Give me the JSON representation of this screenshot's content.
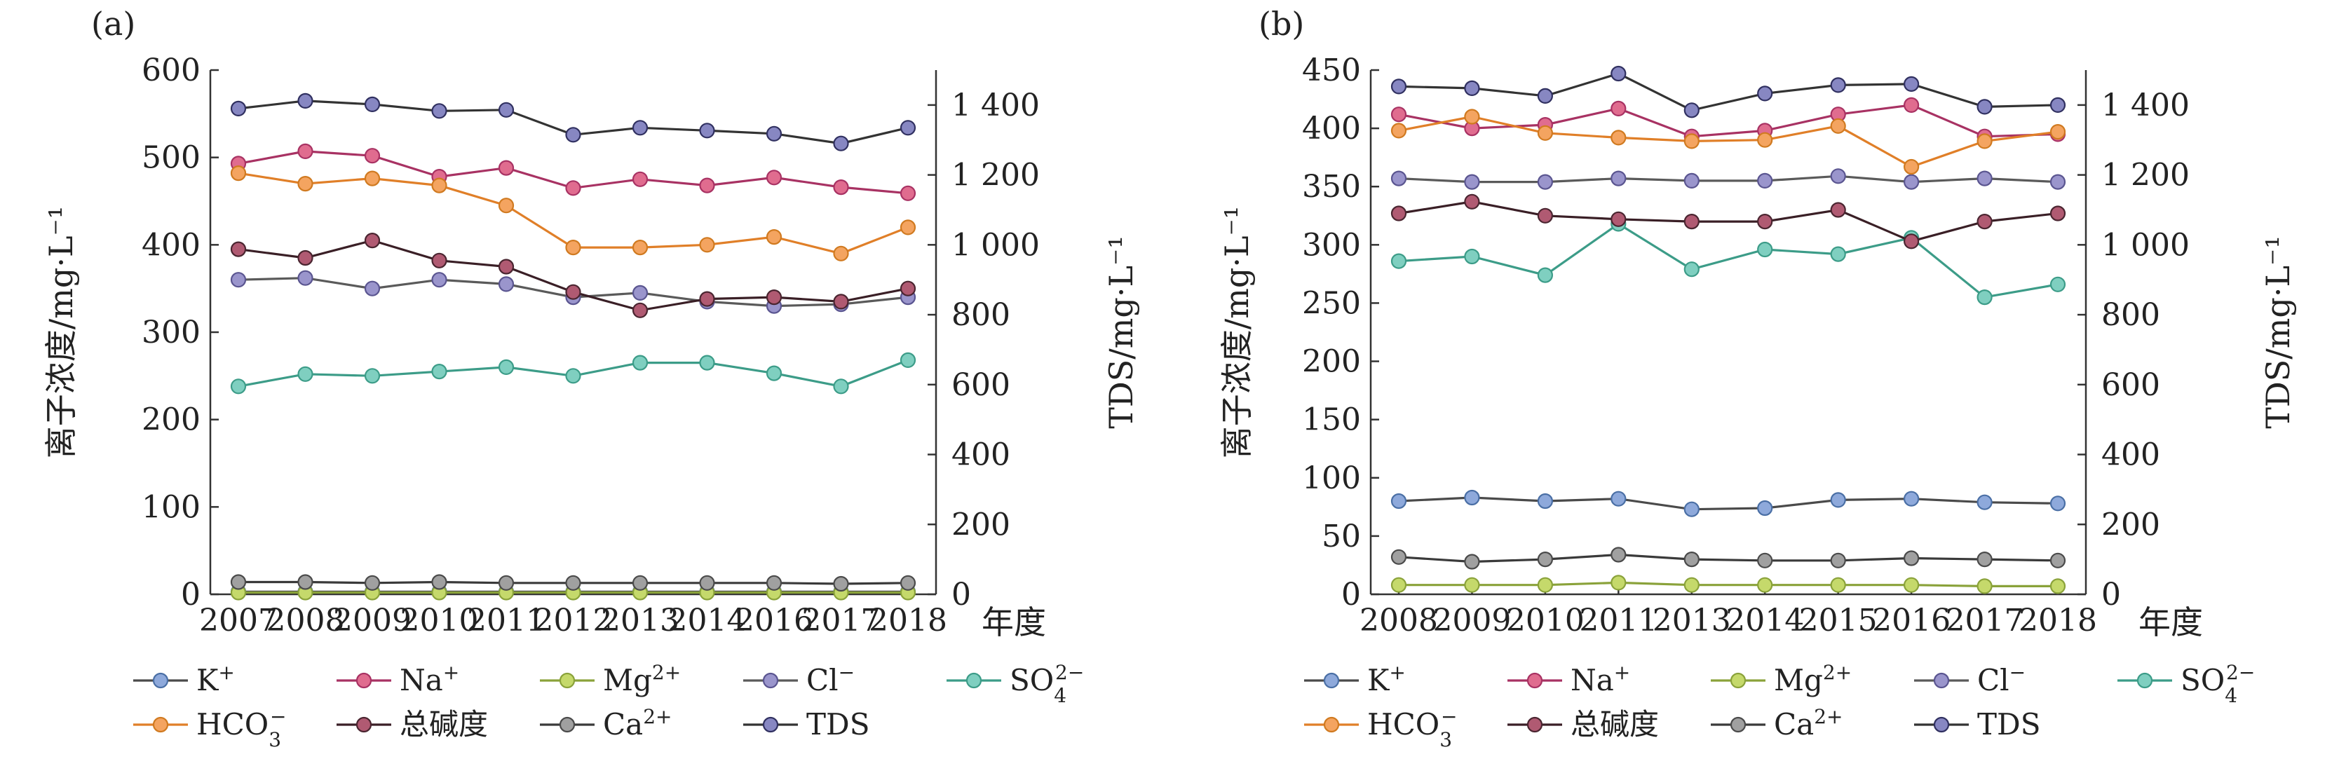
{
  "figure": {
    "panels": [
      {
        "tag": "(a)",
        "left_axis_title": "离子浓度/mg·L⁻¹",
        "right_axis_title": "TDS/mg·L⁻¹",
        "x_unit": "年度",
        "left_ticks": [
          "0",
          "100",
          "200",
          "300",
          "400",
          "500",
          "600"
        ],
        "right_ticks": [
          "0",
          "200",
          "400",
          "600",
          "800",
          "1 000",
          "1 200",
          "1 400"
        ]
      },
      {
        "tag": "(b)",
        "left_axis_title": "离子浓度/mg·L⁻¹",
        "right_axis_title": "TDS/mg·L⁻¹",
        "x_unit": "年度",
        "left_ticks": [
          "0",
          "50",
          "100",
          "150",
          "200",
          "250",
          "300",
          "350",
          "400",
          "450"
        ],
        "right_ticks": [
          "0",
          "200",
          "400",
          "600",
          "800",
          "1 000",
          "1 200",
          "1 400"
        ]
      }
    ]
  },
  "chart_data": [
    {
      "type": "line",
      "title": "(a)",
      "xlabel": "年度",
      "ylabel": "离子浓度/mg·L⁻¹",
      "y2label": "TDS/mg·L⁻¹",
      "categories": [
        "2007",
        "2008",
        "2009",
        "2010",
        "2011",
        "2012",
        "2013",
        "2014",
        "2016",
        "2017",
        "2018"
      ],
      "ylim": [
        0,
        600
      ],
      "y2lim": [
        0,
        1500
      ],
      "grid": false,
      "legend_placement": "bottom",
      "series": [
        {
          "name": "K⁺",
          "axis": "left",
          "color": "#8ea9db",
          "values": [
            3,
            3,
            3,
            3,
            3,
            3,
            3,
            3,
            3,
            3,
            3
          ]
        },
        {
          "name": "Na⁺",
          "axis": "left",
          "color": "#e06c8f",
          "values": [
            493,
            507,
            502,
            478,
            488,
            465,
            475,
            468,
            477,
            466,
            459
          ]
        },
        {
          "name": "Mg²⁺",
          "axis": "left",
          "color": "#c5d96b",
          "values": [
            2,
            2,
            2,
            2,
            2,
            2,
            2,
            2,
            2,
            2,
            2
          ]
        },
        {
          "name": "Cl⁻",
          "axis": "left",
          "color": "#9a95cc",
          "values": [
            360,
            362,
            350,
            360,
            355,
            340,
            345,
            335,
            330,
            332,
            340
          ]
        },
        {
          "name": "SO₄²⁻",
          "axis": "left",
          "color": "#7fcfc0",
          "values": [
            238,
            252,
            250,
            255,
            260,
            250,
            265,
            265,
            253,
            238,
            268
          ]
        },
        {
          "name": "HCO₃⁻",
          "axis": "left",
          "color": "#f4a460",
          "values": [
            482,
            470,
            476,
            468,
            445,
            397,
            397,
            400,
            409,
            390,
            420
          ]
        },
        {
          "name": "总碱度",
          "axis": "left",
          "color": "#b05a72",
          "values": [
            395,
            385,
            405,
            382,
            375,
            346,
            325,
            338,
            340,
            335,
            350
          ]
        },
        {
          "name": "Ca²⁺",
          "axis": "left",
          "color": "#a0a0a0",
          "values": [
            14,
            14,
            13,
            14,
            13,
            13,
            13,
            13,
            13,
            12,
            13
          ]
        },
        {
          "name": "TDS",
          "axis": "right",
          "color": "#8787c2",
          "values": [
            1390,
            1412,
            1402,
            1383,
            1386,
            1315,
            1335,
            1327,
            1318,
            1290,
            1335
          ]
        }
      ]
    },
    {
      "type": "line",
      "title": "(b)",
      "xlabel": "年度",
      "ylabel": "离子浓度/mg·L⁻¹",
      "y2label": "TDS/mg·L⁻¹",
      "categories": [
        "2008",
        "2009",
        "2010",
        "2011",
        "2013",
        "2014",
        "2015",
        "2016",
        "2017",
        "2018"
      ],
      "ylim": [
        0,
        450
      ],
      "y2lim": [
        0,
        1500
      ],
      "grid": false,
      "legend_placement": "bottom",
      "series": [
        {
          "name": "K⁺",
          "axis": "left",
          "color": "#8ea9db",
          "values": [
            80,
            83,
            80,
            82,
            73,
            74,
            81,
            82,
            79,
            78
          ]
        },
        {
          "name": "Na⁺",
          "axis": "left",
          "color": "#e06c8f",
          "values": [
            412,
            400,
            403,
            417,
            393,
            398,
            412,
            420,
            393,
            395
          ]
        },
        {
          "name": "Mg²⁺",
          "axis": "left",
          "color": "#c5d96b",
          "values": [
            8,
            8,
            8,
            10,
            8,
            8,
            8,
            8,
            7,
            7
          ]
        },
        {
          "name": "Cl⁻",
          "axis": "left",
          "color": "#9a95cc",
          "values": [
            357,
            354,
            354,
            357,
            355,
            355,
            359,
            354,
            357,
            354
          ]
        },
        {
          "name": "SO₄²⁻",
          "axis": "left",
          "color": "#7fcfc0",
          "values": [
            286,
            290,
            274,
            318,
            279,
            296,
            292,
            306,
            255,
            266
          ]
        },
        {
          "name": "HCO₃⁻",
          "axis": "left",
          "color": "#f4a460",
          "values": [
            398,
            410,
            396,
            392,
            389,
            390,
            402,
            367,
            389,
            397
          ]
        },
        {
          "name": "总碱度",
          "axis": "left",
          "color": "#b05a72",
          "values": [
            327,
            337,
            325,
            322,
            320,
            320,
            330,
            303,
            320,
            327
          ]
        },
        {
          "name": "Ca²⁺",
          "axis": "left",
          "color": "#a0a0a0",
          "values": [
            32,
            28,
            30,
            34,
            30,
            29,
            29,
            31,
            30,
            29
          ]
        },
        {
          "name": "TDS",
          "axis": "right",
          "color": "#8787c2",
          "values": [
            1453,
            1448,
            1426,
            1490,
            1385,
            1433,
            1457,
            1460,
            1395,
            1400
          ]
        }
      ]
    }
  ]
}
